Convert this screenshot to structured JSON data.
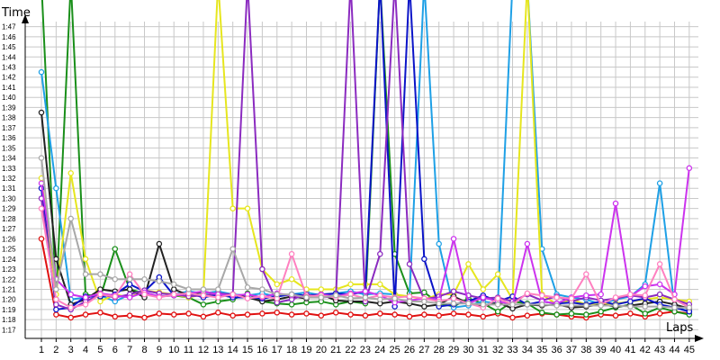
{
  "chart_data": {
    "type": "line",
    "ylabel": "Time",
    "xlabel": "Laps",
    "x": [
      1,
      2,
      3,
      4,
      5,
      6,
      7,
      8,
      9,
      10,
      11,
      12,
      13,
      14,
      15,
      16,
      17,
      18,
      19,
      20,
      21,
      22,
      23,
      24,
      25,
      26,
      27,
      28,
      29,
      30,
      31,
      32,
      33,
      34,
      35,
      36,
      37,
      38,
      39,
      40,
      41,
      42,
      43,
      44,
      45
    ],
    "x_tick_labels": [
      "1",
      "2",
      "3",
      "4",
      "5",
      "6",
      "7",
      "8",
      "9",
      "10",
      "11",
      "12",
      "13",
      "14",
      "15",
      "16",
      "17",
      "18",
      "19",
      "20",
      "21",
      "22",
      "23",
      "24",
      "25",
      "26",
      "27",
      "28",
      "29",
      "30",
      "31",
      "32",
      "33",
      "34",
      "35",
      "36",
      "37",
      "38",
      "39",
      "40",
      "41",
      "42",
      "43",
      "44",
      "45"
    ],
    "y_tick_labels": [
      "1:17",
      "1:18",
      "1:19",
      "1:20",
      "1:21",
      "1:22",
      "1:23",
      "1:24",
      "1:25",
      "1:26",
      "1:27",
      "1:28",
      "1:29",
      "1:30",
      "1:31",
      "1:32",
      "1:33",
      "1:34",
      "1:35",
      "1:36",
      "1:37",
      "1:38",
      "1:39",
      "1:40",
      "1:41",
      "1:42",
      "1:43",
      "1:44",
      "1:45",
      "1:46",
      "1:47"
    ],
    "y_unit_seconds_range": [
      76.5,
      107.5
    ],
    "grid": true,
    "series": [
      {
        "color": "#e01010",
        "values": [
          86,
          78.5,
          78.2,
          78.5,
          78.7,
          78.3,
          78.4,
          78.2,
          78.6,
          78.5,
          78.6,
          78.3,
          78.7,
          78.4,
          78.5,
          78.6,
          78.7,
          78.5,
          78.6,
          78.4,
          78.7,
          78.5,
          78.4,
          78.6,
          78.5,
          78.3,
          78.5,
          78.4,
          78.6,
          78.5,
          78.3,
          78.6,
          78.2,
          78.4,
          78.6,
          78.5,
          78.3,
          78.2,
          78.5,
          78.4,
          78.6,
          78.3,
          78.6,
          78.8,
          78.6
        ]
      },
      {
        "color": "#1a8f1a",
        "values": [
          120,
          80,
          120,
          80.5,
          80.2,
          85,
          81,
          80.6,
          80.3,
          80.4,
          80.2,
          79.5,
          79.8,
          80,
          80.6,
          79.8,
          79.6,
          79.5,
          79.7,
          79.8,
          79.5,
          79.8,
          79.6,
          120,
          84.5,
          80.6,
          80.7,
          79.6,
          79.3,
          80.1,
          79.6,
          78.8,
          79.8,
          79.6,
          78.7,
          78.5,
          78.6,
          78.5,
          78.8,
          79.2,
          79.5,
          78.6,
          79.2,
          78.8,
          78.5
        ]
      },
      {
        "color": "#1ea0e6",
        "values": [
          102.5,
          91,
          80,
          80.2,
          80.4,
          79.8,
          80.5,
          80.9,
          80.6,
          80.5,
          80.8,
          80.6,
          80.8,
          80.5,
          80.4,
          80.6,
          80.3,
          80.5,
          80.7,
          80.4,
          80.6,
          80.8,
          80.5,
          80.6,
          80.5,
          80.2,
          120,
          85.5,
          79.2,
          79.4,
          79.8,
          79.6,
          120,
          120,
          85,
          80.5,
          80.2,
          80,
          79.5,
          80,
          80.3,
          81.5,
          91.5,
          79.3,
          78.8
        ]
      },
      {
        "color": "#e6e61e",
        "values": [
          92,
          80.5,
          92.5,
          84,
          79.8,
          80.5,
          80.2,
          80.9,
          80.7,
          80.5,
          80.2,
          80.5,
          120,
          89,
          89,
          83,
          81.5,
          82,
          81,
          81,
          81,
          81.5,
          81.5,
          81.5,
          80.5,
          80.3,
          80,
          80.5,
          80.5,
          83.5,
          81,
          82.5,
          80,
          120,
          80.5,
          79.5,
          80,
          79.5,
          79.5,
          79.6,
          79.8,
          80,
          80.2,
          80,
          79.8
        ]
      },
      {
        "color": "#222222",
        "values": [
          98.5,
          84,
          79.5,
          80,
          81,
          80.8,
          81,
          80.2,
          85.5,
          81,
          80.4,
          80.8,
          80.5,
          80.5,
          80.2,
          79.8,
          80,
          80.3,
          80.1,
          80.5,
          79.9,
          79.8,
          79.8,
          79.6,
          79.8,
          79.6,
          79.3,
          79.5,
          80.3,
          79.6,
          79.3,
          79.7,
          79.1,
          79.5,
          79.4,
          79.5,
          79.2,
          79.3,
          79.5,
          79.3,
          79.4,
          79.6,
          79.8,
          79.5,
          79.1
        ]
      },
      {
        "color": "#0b14c8",
        "values": [
          91,
          79,
          79.2,
          80.3,
          80.3,
          80.5,
          81.5,
          80.8,
          82.2,
          80.4,
          80.6,
          80.2,
          80.5,
          80.2,
          80.2,
          80.1,
          80.3,
          80.5,
          80.4,
          80.5,
          80.6,
          80.5,
          80.8,
          120,
          79.3,
          120,
          84,
          79.3,
          79.5,
          79.8,
          80.4,
          79.8,
          80.3,
          79.5,
          79.8,
          79.6,
          79.7,
          79.5,
          79.8,
          79.5,
          79.8,
          80.1,
          79.5,
          79.2,
          78.8
        ]
      },
      {
        "color": "#8b2bc0",
        "values": [
          90,
          79.5,
          79,
          79.8,
          80.5,
          80.2,
          80.5,
          80.9,
          80.6,
          80.5,
          80.3,
          80.4,
          80.6,
          80.5,
          120,
          83,
          79.7,
          80,
          80.5,
          80.2,
          80.3,
          120,
          79.8,
          84.5,
          120,
          83.5,
          80,
          80.3,
          80.8,
          80.4,
          80.1,
          80.2,
          79.8,
          80.5,
          79.9,
          80.3,
          79.8,
          80.2,
          79.9,
          80.1,
          80.4,
          80.2,
          80.5,
          80,
          79.5
        ]
      },
      {
        "color": "#cc33ee",
        "values": [
          91.5,
          82,
          80.5,
          80.2,
          80.6,
          80.4,
          80.2,
          80.7,
          80.3,
          80.4,
          80.6,
          80.8,
          80.5,
          80.4,
          80.5,
          80.2,
          80.6,
          80.4,
          80.2,
          80.5,
          80.3,
          80.6,
          80.8,
          80.4,
          79.7,
          79.9,
          80.1,
          80,
          86,
          79.6,
          80.2,
          79.8,
          79.5,
          85.5,
          79.8,
          79.6,
          80.2,
          80.4,
          80.5,
          89.5,
          80.3,
          81.3,
          81.5,
          80.5,
          93
        ]
      },
      {
        "color": "#ff80c0",
        "values": [
          89,
          80,
          79.2,
          79.5,
          80.5,
          80.3,
          82.5,
          80.5,
          80.2,
          80.5,
          80.6,
          80.4,
          80.2,
          80.5,
          80.1,
          80.3,
          80.1,
          84.5,
          80.3,
          80.4,
          80.2,
          80.5,
          80.1,
          80.4,
          80.2,
          80.3,
          80.1,
          79.8,
          80.1,
          79.6,
          79.2,
          80.1,
          79.5,
          80.6,
          80.4,
          80.2,
          80.1,
          82.5,
          79.5,
          80.2,
          80.5,
          80.4,
          83.5,
          80,
          79.2
        ]
      },
      {
        "color": "#a8a8a8",
        "values": [
          94,
          81,
          88,
          82.5,
          82.5,
          82,
          82,
          82,
          81.8,
          81.5,
          81,
          81,
          81,
          85,
          81.2,
          81,
          80.5,
          80.5,
          80.2,
          80.2,
          80.4,
          80.1,
          80.2,
          80,
          80.1,
          79.8,
          79.8,
          79.6,
          79.6,
          79.6,
          79.5,
          79.5,
          79.5,
          79.5,
          79.5,
          79.4,
          79.4,
          79.4,
          79.4,
          79.4,
          79.3,
          79.3,
          79.3,
          79.2,
          79.2
        ]
      }
    ]
  }
}
